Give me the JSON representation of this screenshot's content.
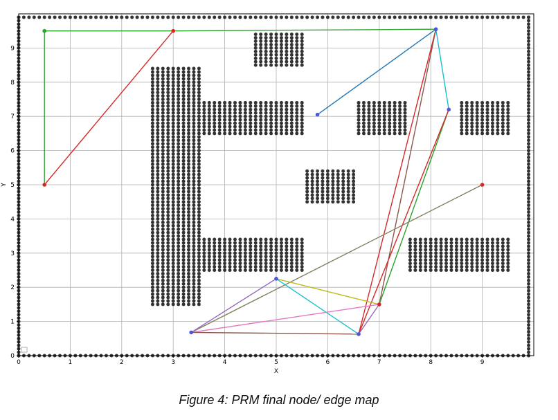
{
  "caption": "Figure 4: PRM final node/ edge map",
  "chart_data": {
    "type": "scatter",
    "xlabel": "X",
    "ylabel": "Y",
    "xlim": [
      0,
      10
    ],
    "ylim": [
      0,
      10
    ],
    "grid": true,
    "xticks": [
      0,
      1,
      2,
      3,
      4,
      5,
      6,
      7,
      8,
      9
    ],
    "yticks": [
      0,
      1,
      2,
      3,
      4,
      5,
      6,
      7,
      8,
      9
    ],
    "obstacle_spacing": 0.1,
    "obstacle_color": "#333333",
    "boundary": {
      "x": [
        0,
        9.9
      ],
      "y": [
        0,
        9.9
      ]
    },
    "obstacles": [
      {
        "x": [
          2.6,
          3.5
        ],
        "y": [
          1.5,
          8.4
        ]
      },
      {
        "x": [
          4.6,
          5.5
        ],
        "y": [
          8.5,
          9.4
        ]
      },
      {
        "x": [
          3.6,
          5.5
        ],
        "y": [
          6.5,
          7.4
        ]
      },
      {
        "x": [
          5.6,
          6.5
        ],
        "y": [
          4.5,
          5.4
        ]
      },
      {
        "x": [
          3.6,
          5.5
        ],
        "y": [
          2.5,
          3.4
        ]
      },
      {
        "x": [
          6.6,
          7.5
        ],
        "y": [
          6.5,
          7.4
        ]
      },
      {
        "x": [
          8.6,
          9.5
        ],
        "y": [
          6.5,
          7.4
        ]
      },
      {
        "x": [
          7.6,
          9.5
        ],
        "y": [
          2.5,
          3.4
        ]
      }
    ],
    "nodes": [
      {
        "x": 0.5,
        "y": 9.5,
        "color": "#2ca02c"
      },
      {
        "x": 3.0,
        "y": 9.5,
        "color": "#d62728"
      },
      {
        "x": 0.5,
        "y": 5.0,
        "color": "#d62728"
      },
      {
        "x": 8.1,
        "y": 9.55,
        "color": "#4c57d6"
      },
      {
        "x": 5.8,
        "y": 7.05,
        "color": "#4c57d6"
      },
      {
        "x": 8.35,
        "y": 7.2,
        "color": "#4c57d6"
      },
      {
        "x": 9.0,
        "y": 5.0,
        "color": "#d62728"
      },
      {
        "x": 5.0,
        "y": 2.25,
        "color": "#4c57d6"
      },
      {
        "x": 7.0,
        "y": 1.5,
        "color": "#d62728"
      },
      {
        "x": 6.6,
        "y": 0.63,
        "color": "#4c57d6"
      },
      {
        "x": 3.35,
        "y": 0.68,
        "color": "#4c57d6"
      }
    ],
    "edges": [
      {
        "x1": 0.5,
        "y1": 9.5,
        "x2": 3.0,
        "y2": 9.5,
        "color": "#2ca02c"
      },
      {
        "x1": 0.5,
        "y1": 9.5,
        "x2": 0.5,
        "y2": 5.0,
        "color": "#2ca02c"
      },
      {
        "x1": 3.0,
        "y1": 9.5,
        "x2": 8.1,
        "y2": 9.55,
        "color": "#2ca02c"
      },
      {
        "x1": 0.5,
        "y1": 5.0,
        "x2": 3.0,
        "y2": 9.5,
        "color": "#d62728"
      },
      {
        "x1": 5.8,
        "y1": 7.05,
        "x2": 8.1,
        "y2": 9.55,
        "color": "#1f77b4"
      },
      {
        "x1": 8.1,
        "y1": 9.55,
        "x2": 8.35,
        "y2": 7.2,
        "color": "#17becf"
      },
      {
        "x1": 8.1,
        "y1": 9.55,
        "x2": 6.6,
        "y2": 0.63,
        "color": "#d62728"
      },
      {
        "x1": 8.1,
        "y1": 9.55,
        "x2": 7.0,
        "y2": 1.5,
        "color": "#8c564b"
      },
      {
        "x1": 8.35,
        "y1": 7.2,
        "x2": 7.0,
        "y2": 1.5,
        "color": "#2ca02c"
      },
      {
        "x1": 8.35,
        "y1": 7.2,
        "x2": 6.6,
        "y2": 0.63,
        "color": "#d62728"
      },
      {
        "x1": 9.0,
        "y1": 5.0,
        "x2": 3.35,
        "y2": 0.68,
        "color": "#7f7f5f"
      },
      {
        "x1": 5.0,
        "y1": 2.25,
        "x2": 7.0,
        "y2": 1.5,
        "color": "#bcbd22"
      },
      {
        "x1": 5.0,
        "y1": 2.25,
        "x2": 6.6,
        "y2": 0.63,
        "color": "#17becf"
      },
      {
        "x1": 5.0,
        "y1": 2.25,
        "x2": 3.35,
        "y2": 0.68,
        "color": "#9467bd"
      },
      {
        "x1": 3.35,
        "y1": 0.68,
        "x2": 7.0,
        "y2": 1.5,
        "color": "#e377c2"
      },
      {
        "x1": 3.35,
        "y1": 0.68,
        "x2": 6.6,
        "y2": 0.63,
        "color": "#8c564b"
      },
      {
        "x1": 6.6,
        "y1": 0.63,
        "x2": 7.0,
        "y2": 1.5,
        "color": "#9467bd"
      }
    ]
  }
}
